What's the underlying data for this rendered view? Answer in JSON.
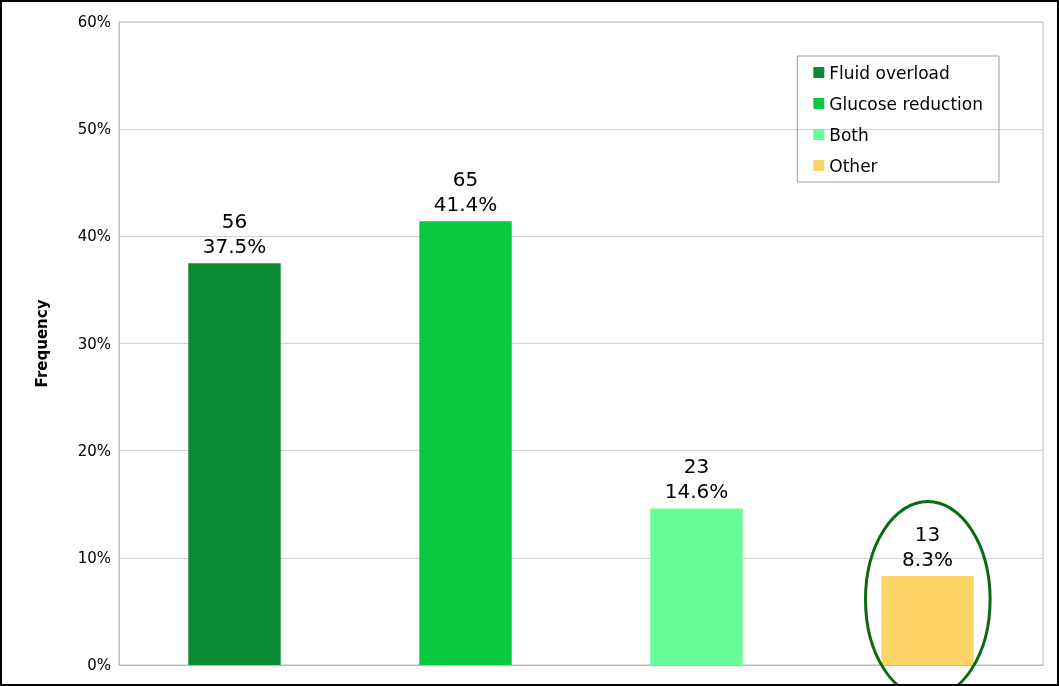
{
  "chart_data": {
    "type": "bar",
    "ylabel": "Frequency",
    "categories": [
      null,
      null,
      null,
      null
    ],
    "series": [
      {
        "name": "Fluid overload",
        "color": "#0a8a32",
        "values": [
          37.5,
          null,
          null,
          null
        ],
        "value_labels": [
          "56\n37.5%",
          null,
          null,
          null
        ]
      },
      {
        "name": "Glucose reduction",
        "color": "#08c940",
        "values": [
          null,
          41.4,
          null,
          null
        ],
        "value_labels": [
          null,
          "65\n41.4%",
          null,
          null
        ]
      },
      {
        "name": "Both",
        "color": "#66fd98",
        "values": [
          null,
          null,
          14.6,
          null
        ],
        "value_labels": [
          null,
          null,
          "23\n14.6%",
          null
        ]
      },
      {
        "name": "Other",
        "color": "#ffd466",
        "values": [
          null,
          null,
          null,
          8.3
        ],
        "value_labels": [
          null,
          null,
          null,
          "13\n8.3%"
        ]
      }
    ],
    "ylim": [
      0,
      60
    ],
    "yticks": [
      {
        "value": 0,
        "label": "0%"
      },
      {
        "value": 10,
        "label": "10%"
      },
      {
        "value": 20,
        "label": "20%"
      },
      {
        "value": 30,
        "label": "30%"
      },
      {
        "value": 40,
        "label": "40%"
      },
      {
        "value": 50,
        "label": "50%"
      },
      {
        "value": 60,
        "label": "60%"
      }
    ],
    "grid": "y",
    "legend": "top right"
  }
}
